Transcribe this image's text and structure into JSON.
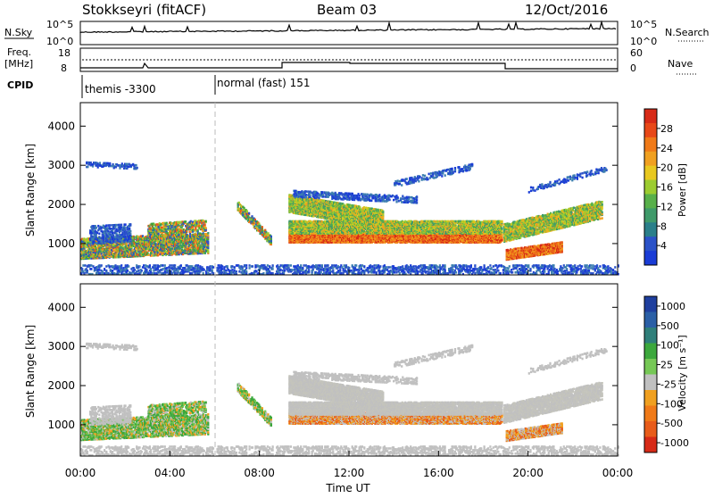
{
  "header": {
    "station": "Stokkseyri (fitACF)",
    "beam": "Beam 03",
    "date": "12/Oct/2016"
  },
  "status_panels": {
    "nsky_label": "N.Sky",
    "nsky_ticks": [
      "10^5",
      "10^0"
    ],
    "nsearch_label": "N.Search",
    "nsearch_ticks": [
      "10^5",
      "10^0"
    ],
    "freq_label": "Freq.",
    "freq_unit": "[MHz]",
    "freq_ticks": [
      "18",
      "8"
    ],
    "nave_label": "Nave",
    "nave_ticks": [
      "60",
      "0"
    ],
    "cpid_label": "CPID",
    "cpid_modes": [
      {
        "label": "themis -3300",
        "start_hour": 0
      },
      {
        "label": "normal (fast) 151",
        "start_hour": 6
      }
    ]
  },
  "chart_data": [
    {
      "type": "heatmap",
      "name": "power",
      "ylabel": "Slant Range [km]",
      "xlabel": "Time UT",
      "xlim": [
        0,
        24
      ],
      "ylim": [
        200,
        4600
      ],
      "x_ticks": [
        "00:00",
        "04:00",
        "08:00",
        "12:00",
        "16:00",
        "20:00",
        "00:00"
      ],
      "y_ticks": [
        1000,
        2000,
        3000,
        4000
      ],
      "colorbar": {
        "label": "Power [dB]",
        "ticks": [
          "28",
          "24",
          "20",
          "16",
          "12",
          "8",
          "4"
        ],
        "range": [
          0,
          32
        ]
      }
    },
    {
      "type": "heatmap",
      "name": "velocity",
      "ylabel": "Slant Range [km]",
      "xlabel": "Time UT",
      "xlim": [
        0,
        24
      ],
      "ylim": [
        200,
        4600
      ],
      "x_ticks": [
        "00:00",
        "04:00",
        "08:00",
        "12:00",
        "16:00",
        "20:00",
        "00:00"
      ],
      "y_ticks": [
        1000,
        2000,
        3000,
        4000
      ],
      "colorbar": {
        "label": "Velocity [m s⁻¹]",
        "ticks": [
          "1000",
          "500",
          "100",
          "25",
          "-25",
          "-100",
          "-500",
          "-1000"
        ]
      }
    }
  ],
  "time_axis_label": "Time UT"
}
